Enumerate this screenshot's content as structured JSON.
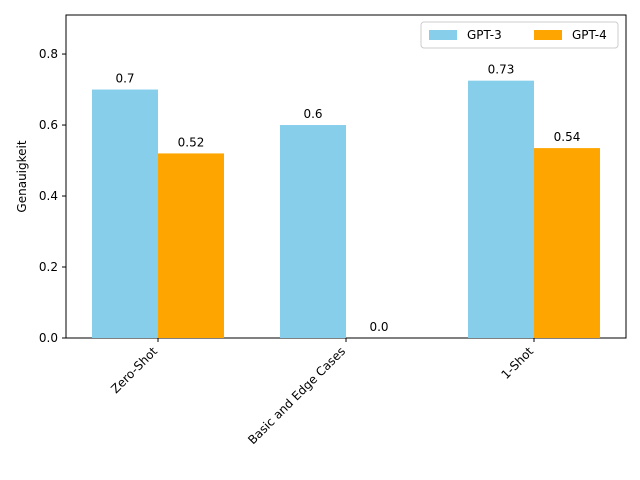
{
  "chart_data": {
    "type": "bar",
    "categories": [
      "Zero-Shot",
      "Basic and Edge Cases",
      "1-Shot"
    ],
    "series": [
      {
        "name": "GPT-3",
        "values": [
          0.7,
          0.6,
          0.725
        ],
        "labels": [
          "0.7",
          "0.6",
          "0.73"
        ],
        "color": "#87CEEB"
      },
      {
        "name": "GPT-4",
        "values": [
          0.52,
          0.0,
          0.535
        ],
        "labels": [
          "0.52",
          "0.0",
          "0.54"
        ],
        "color": "#FFA500"
      }
    ],
    "ylabel": "Genauigkeit",
    "ylim": [
      0,
      0.91
    ],
    "yticks": [
      "0.0",
      "0.2",
      "0.4",
      "0.6",
      "0.8"
    ],
    "legend_position": "top-right",
    "grid": false
  }
}
